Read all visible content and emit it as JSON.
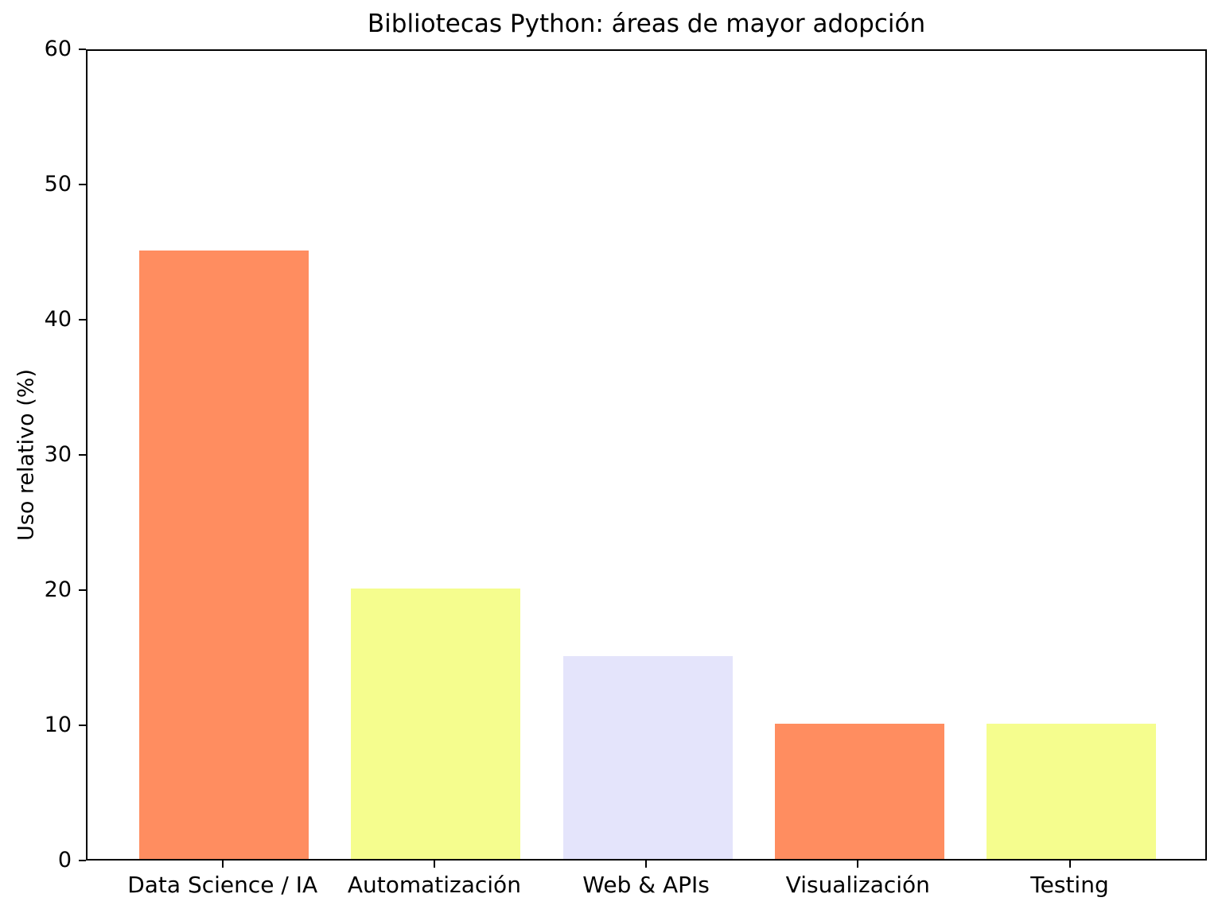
{
  "chart_data": {
    "type": "bar",
    "title": "Bibliotecas Python: áreas de mayor adopción",
    "categories": [
      "Data Science / IA",
      "Automatización",
      "Web & APIs",
      "Visualización",
      "Testing"
    ],
    "values": [
      45,
      20,
      15,
      10,
      10
    ],
    "bar_colors": [
      "#ff8d60",
      "#f5fd8e",
      "#e4e4fb",
      "#ff8d60",
      "#f5fd8e"
    ],
    "xlabel": "",
    "ylabel": "Uso relativo (%)",
    "ylim": [
      0,
      60
    ],
    "yticks": [
      0,
      10,
      20,
      30,
      40,
      50,
      60
    ],
    "grid": false,
    "legend": null,
    "background_color": "#ffffff",
    "spine_color": "#000000"
  }
}
